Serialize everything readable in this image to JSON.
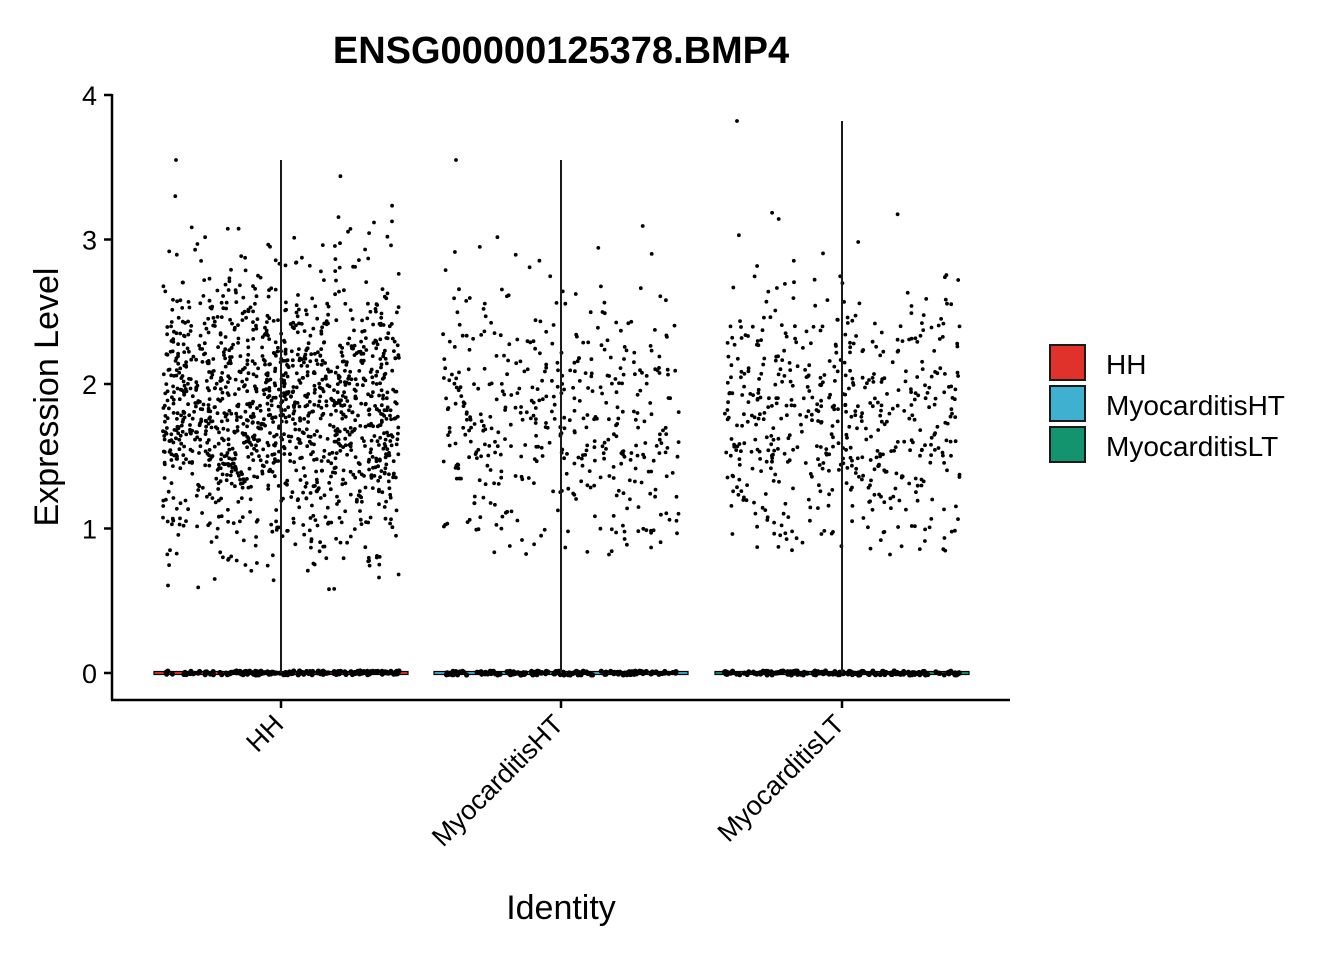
{
  "chart_data": {
    "type": "violin",
    "title": "ENSG00000125378.BMP4",
    "xlabel": "Identity",
    "ylabel": "Expression Level",
    "categories": [
      "HH",
      "MyocarditisHT",
      "MyocarditisLT"
    ],
    "ylim": [
      -0.2,
      4.15
    ],
    "yticks": [
      0,
      1,
      2,
      3,
      4
    ],
    "grid": false,
    "legend": {
      "position": "right",
      "entries": [
        {
          "label": "HH",
          "color": "#e0312b"
        },
        {
          "label": "MyocarditisHT",
          "color": "#3fb0cf"
        },
        {
          "label": "MyocarditisLT",
          "color": "#13946e"
        }
      ]
    },
    "series": [
      {
        "category": "HH",
        "max": 3.55,
        "nonzero_range": [
          0.58,
          3.55
        ],
        "nonzero_median": 1.85,
        "zero_value": 0,
        "nonzero_points_approx": 1400
      },
      {
        "category": "MyocarditisHT",
        "max": 3.55,
        "nonzero_range": [
          0.82,
          3.55
        ],
        "nonzero_median": 1.75,
        "zero_value": 0,
        "nonzero_points_approx": 450
      },
      {
        "category": "MyocarditisLT",
        "max": 3.82,
        "nonzero_range": [
          0.82,
          3.82
        ],
        "nonzero_median": 1.75,
        "zero_value": 0,
        "nonzero_points_approx": 550
      }
    ],
    "point_color": "#000000"
  }
}
